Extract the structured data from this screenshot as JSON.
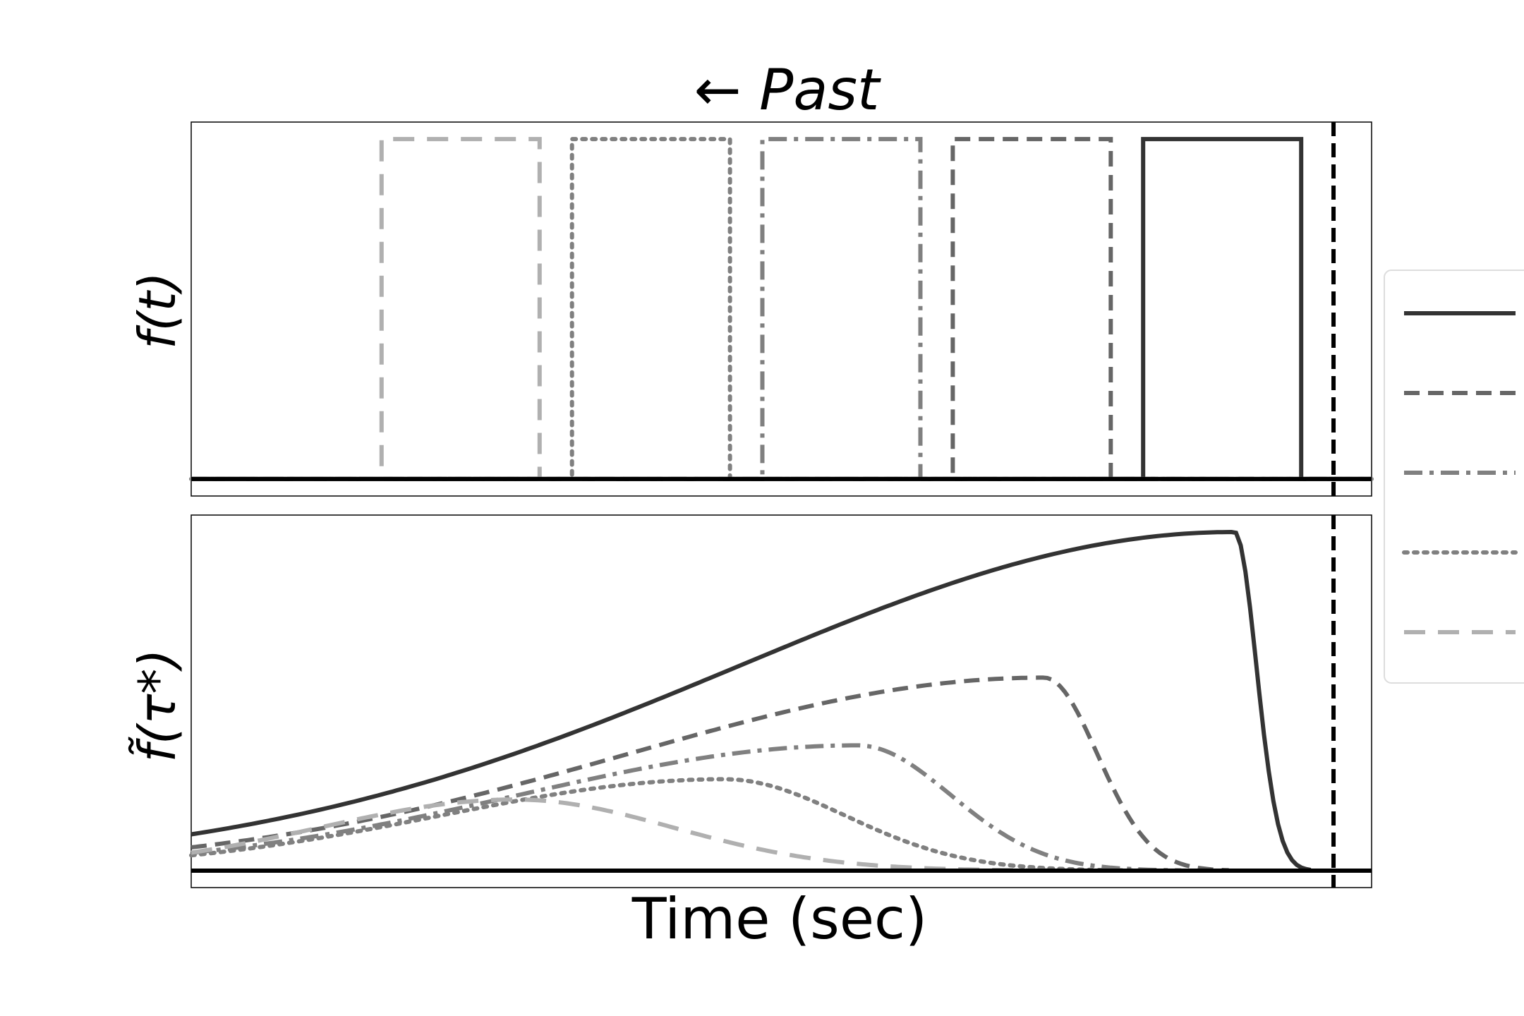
{
  "title": "← Past",
  "chart_data": [
    {
      "type": "line",
      "panel": "top",
      "ylabel": "f(t)",
      "xlabel": "",
      "xlim": [
        0,
        6.2
      ],
      "ylim": [
        -0.05,
        1.05
      ],
      "now_marker_x": 6.0,
      "baseline_y": 0,
      "series": [
        {
          "style": "solid",
          "color": "#333333",
          "x": [
            0,
            5.0,
            5.0,
            5.83,
            5.83,
            6.2
          ],
          "y": [
            0,
            0,
            1,
            1,
            0,
            0
          ]
        },
        {
          "style": "dashed",
          "color": "#666666",
          "x": [
            0,
            4.0,
            4.0,
            4.83,
            4.83,
            6.2
          ],
          "y": [
            0,
            0,
            1,
            1,
            0,
            0
          ]
        },
        {
          "style": "dashdot",
          "color": "#808080",
          "x": [
            0,
            3.0,
            3.0,
            3.83,
            3.83,
            6.2
          ],
          "y": [
            0,
            0,
            1,
            1,
            0,
            0
          ]
        },
        {
          "style": "dotted",
          "color": "#808080",
          "x": [
            0,
            2.0,
            2.0,
            2.83,
            2.83,
            6.2
          ],
          "y": [
            0,
            0,
            1,
            1,
            0,
            0
          ]
        },
        {
          "style": "longdash",
          "color": "#b0b0b0",
          "x": [
            0,
            1.0,
            1.0,
            1.83,
            1.83,
            6.2
          ],
          "y": [
            0,
            0,
            1,
            1,
            0,
            0
          ]
        }
      ]
    },
    {
      "type": "line",
      "panel": "bottom",
      "ylabel": "f̃(τ*)",
      "xlabel": "Time (sec)",
      "xlim": [
        0,
        6.2
      ],
      "ylim": [
        -0.05,
        1.05
      ],
      "now_marker_x": 6.0,
      "baseline_y": 0,
      "series": [
        {
          "style": "solid",
          "color": "#333333",
          "peak_x": 5.48,
          "peak_y": 1.0,
          "end_x": 5.88
        },
        {
          "style": "dashed",
          "color": "#666666",
          "peak_x": 4.48,
          "peak_y": 0.57,
          "end_x": 5.45
        },
        {
          "style": "dashdot",
          "color": "#808080",
          "peak_x": 3.5,
          "peak_y": 0.37,
          "end_x": 5.2
        },
        {
          "style": "dotted",
          "color": "#808080",
          "peak_x": 2.8,
          "peak_y": 0.27,
          "end_x": 5.0
        },
        {
          "style": "longdash",
          "color": "#b0b0b0",
          "peak_x": 1.7,
          "peak_y": 0.21,
          "end_x": 4.6
        }
      ]
    }
  ],
  "legend": {
    "placement": "center-right",
    "entries": [
      {
        "style": "solid",
        "color": "#333333"
      },
      {
        "style": "dashed",
        "color": "#666666"
      },
      {
        "style": "dashdot",
        "color": "#808080"
      },
      {
        "style": "dotted",
        "color": "#808080"
      },
      {
        "style": "longdash",
        "color": "#b0b0b0"
      }
    ]
  }
}
